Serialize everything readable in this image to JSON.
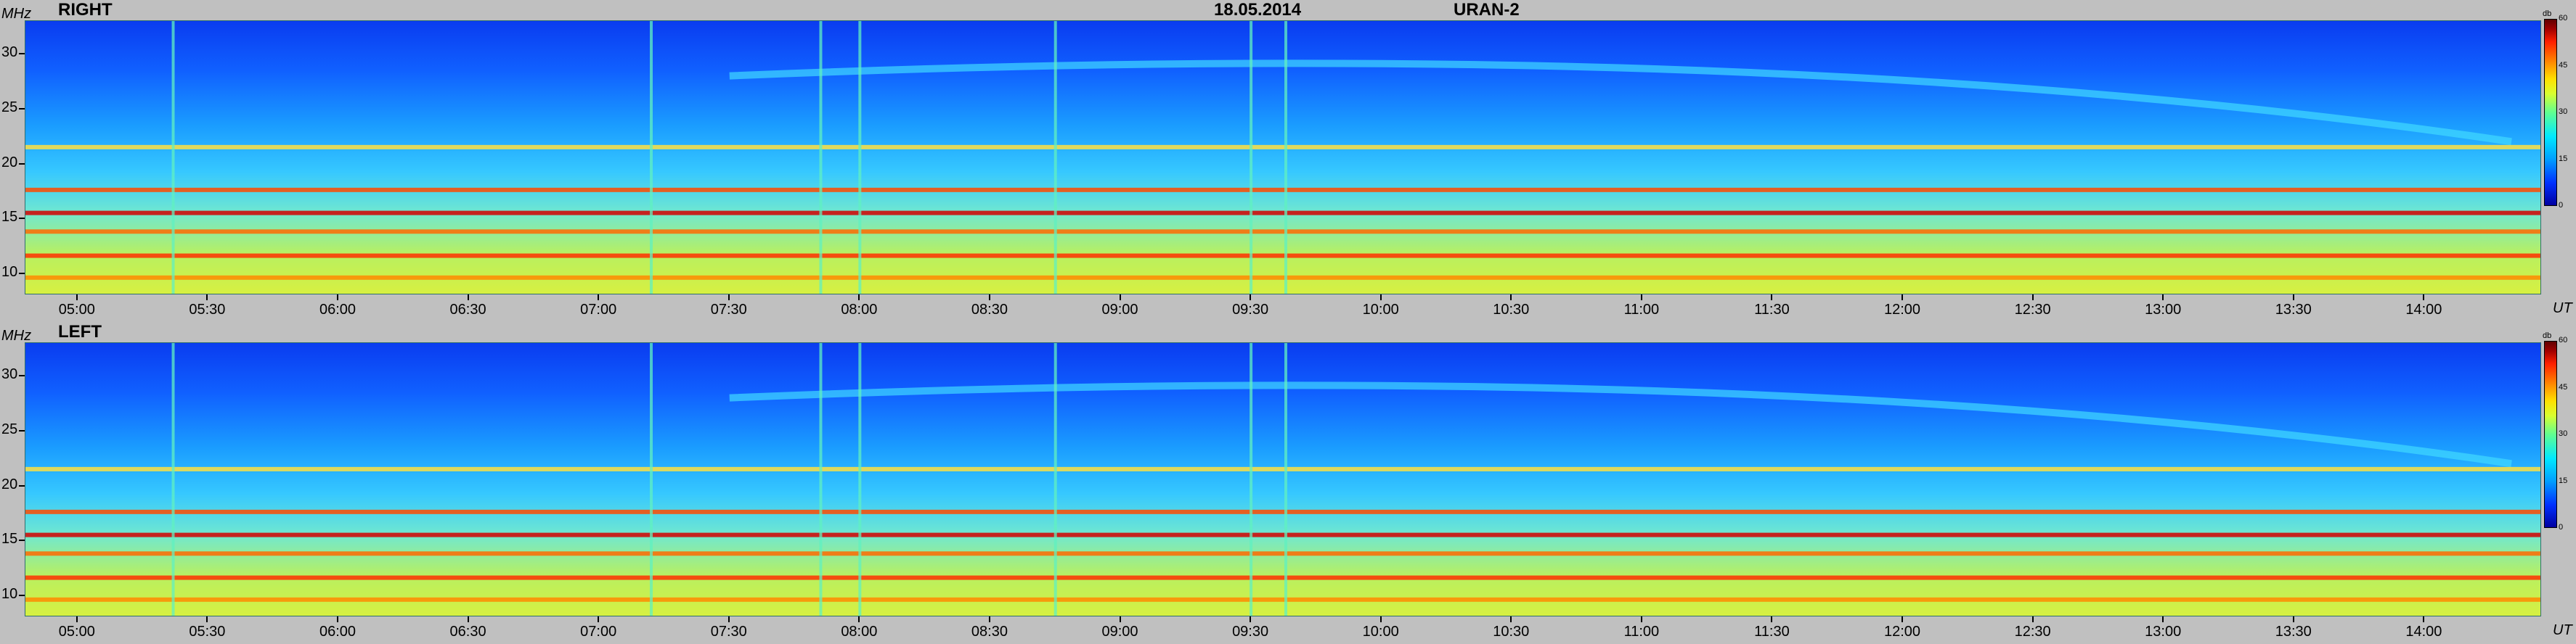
{
  "header": {
    "date": "18.05.2014",
    "instrument": "URAN-2"
  },
  "chart_data": [
    {
      "type": "heatmap",
      "title": "RIGHT",
      "ylabel": "MHz",
      "xlabel": "UT",
      "x_ticks": [
        "05:00",
        "05:30",
        "06:00",
        "06:30",
        "07:00",
        "07:30",
        "08:00",
        "08:30",
        "09:00",
        "09:30",
        "10:00",
        "10:30",
        "11:00",
        "11:30",
        "12:00",
        "12:30",
        "13:00",
        "13:30",
        "14:00"
      ],
      "y_ticks": [
        "30",
        "25",
        "20",
        "15",
        "10"
      ],
      "ylim": [
        8,
        33
      ],
      "xlim": [
        "04:48",
        "14:27"
      ],
      "colorbar": {
        "label": "db",
        "ticks": [
          "60",
          "45",
          "30",
          "15",
          "0"
        ],
        "range": [
          0,
          60
        ]
      },
      "colormap": "jet",
      "features": {
        "rfi_bands_mhz": [
          9.6,
          11.6,
          13.8,
          15.5,
          17.6,
          21.5
        ],
        "vertical_bursts_ut": [
          "05:22",
          "07:12",
          "07:51",
          "08:00",
          "08:45",
          "09:30",
          "09:38"
        ],
        "drifting_band": {
          "from": [
            "07:30",
            28
          ],
          "to": [
            "14:20",
            22
          ]
        }
      }
    },
    {
      "type": "heatmap",
      "title": "LEFT",
      "ylabel": "MHz",
      "xlabel": "UT",
      "x_ticks": [
        "05:00",
        "05:30",
        "06:00",
        "06:30",
        "07:00",
        "07:30",
        "08:00",
        "08:30",
        "09:00",
        "09:30",
        "10:00",
        "10:30",
        "11:00",
        "11:30",
        "12:00",
        "12:30",
        "13:00",
        "13:30",
        "14:00"
      ],
      "y_ticks": [
        "30",
        "25",
        "20",
        "15",
        "10"
      ],
      "ylim": [
        8,
        33
      ],
      "xlim": [
        "04:48",
        "14:27"
      ],
      "colorbar": {
        "label": "db",
        "ticks": [
          "60",
          "45",
          "30",
          "15",
          "0"
        ],
        "range": [
          0,
          60
        ]
      },
      "colormap": "jet",
      "features": {
        "rfi_bands_mhz": [
          9.6,
          11.6,
          13.8,
          15.5,
          17.6,
          21.5
        ],
        "vertical_bursts_ut": [
          "05:22",
          "07:12",
          "07:51",
          "08:00",
          "08:45",
          "09:30",
          "09:38"
        ],
        "drifting_band": {
          "from": [
            "07:30",
            28
          ],
          "to": [
            "14:20",
            22
          ]
        }
      }
    }
  ]
}
